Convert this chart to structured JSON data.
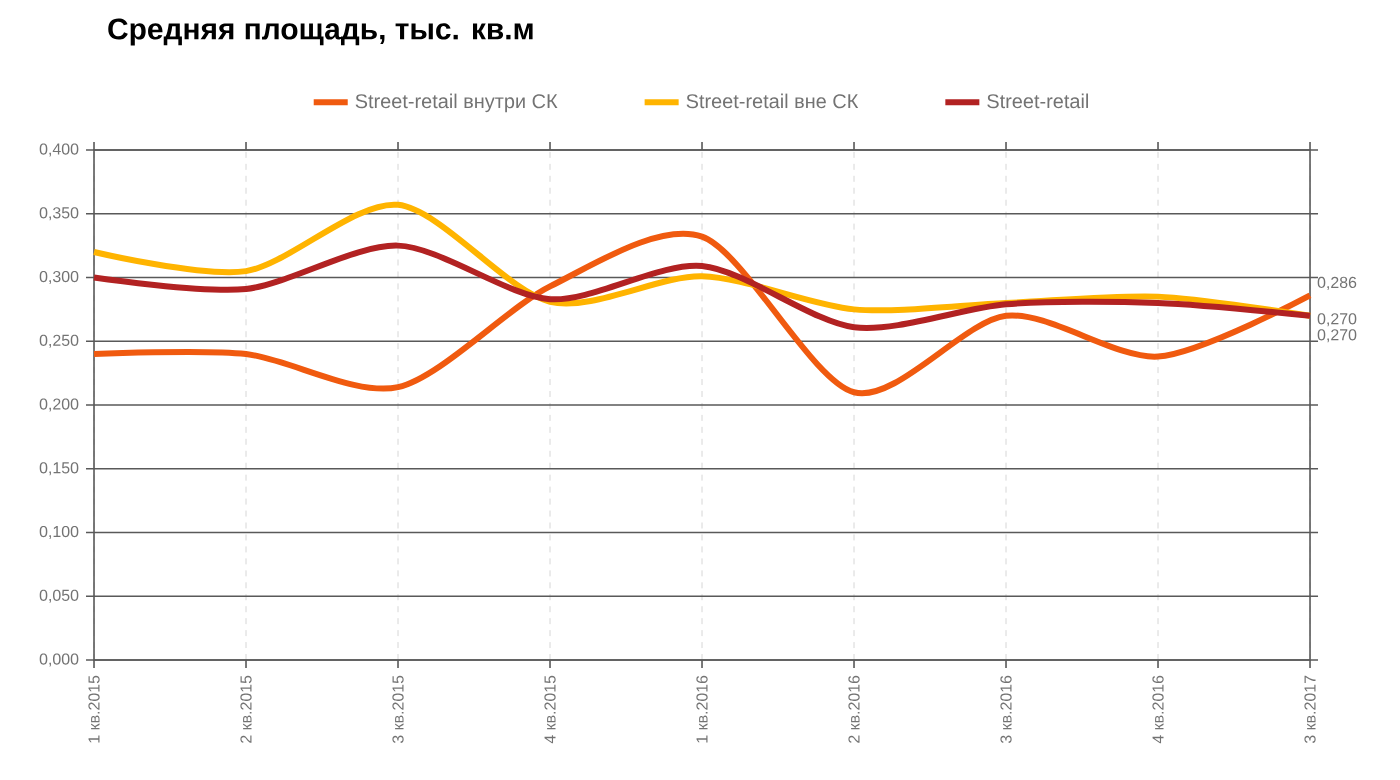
{
  "chart_data": {
    "type": "line",
    "title": "Средняя площадь, тыс. кв.м",
    "categories": [
      "1 кв.2015",
      "2 кв.2015",
      "3 кв.2015",
      "4 кв.2015",
      "1 кв.2016",
      "2 кв.2016",
      "3 кв.2016",
      "4 кв.2016",
      "3 кв.2017"
    ],
    "series": [
      {
        "name": "Street-retail внутри СК",
        "color": "#f05a0f",
        "values": [
          0.24,
          0.24,
          0.214,
          0.293,
          0.332,
          0.21,
          0.27,
          0.238,
          0.286
        ],
        "value_labels": [
          null,
          null,
          null,
          null,
          null,
          null,
          null,
          null,
          "0,286"
        ]
      },
      {
        "name": "Street-retail вне СК",
        "color": "#ffb400",
        "values": [
          0.32,
          0.305,
          0.357,
          0.281,
          0.301,
          0.275,
          0.28,
          0.285,
          0.27
        ],
        "value_labels": [
          null,
          null,
          null,
          null,
          null,
          null,
          null,
          null,
          "0,270"
        ]
      },
      {
        "name": "Street-retail",
        "color": "#b22222",
        "values": [
          0.3,
          0.291,
          0.325,
          0.283,
          0.309,
          0.261,
          0.279,
          0.28,
          0.27
        ],
        "value_labels": [
          null,
          null,
          null,
          null,
          null,
          null,
          null,
          null,
          "0,270"
        ]
      }
    ],
    "ylim": [
      0,
      0.4
    ],
    "yticks": [
      {
        "value": 0,
        "label": "0,000"
      },
      {
        "value": 0.05,
        "label": "0,050"
      },
      {
        "value": 0.1,
        "label": "0,100"
      },
      {
        "value": 0.15,
        "label": "0,150"
      },
      {
        "value": 0.2,
        "label": "0,200"
      },
      {
        "value": 0.25,
        "label": "0,250"
      },
      {
        "value": 0.3,
        "label": "0,300"
      },
      {
        "value": 0.35,
        "label": "0,350"
      },
      {
        "value": 0.4,
        "label": "0,400"
      }
    ],
    "grid": true,
    "legend": "top",
    "marker": "none",
    "line_style": "solid"
  }
}
